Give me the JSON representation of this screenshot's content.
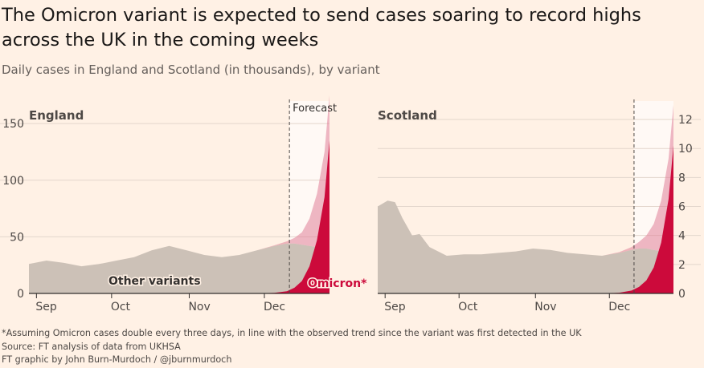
{
  "header": {
    "title_line1": "The Omicron variant is expected to send cases soaring to record highs",
    "title_line2": "across the UK in the coming weeks",
    "subtitle": "Daily cases in England and Scotland (in thousands), by variant"
  },
  "footer": {
    "note": "*Assuming Omicron cases double every three days, in line with the observed trend since the variant was first detected in the UK",
    "source": "Source: FT analysis of data from UKHSA",
    "credit": "FT graphic by John Burn-Murdoch / @jburnmurdoch"
  },
  "colors": {
    "background": "#fff1e5",
    "forecast_band": "#fff9f5",
    "other_variants": "#ccc1b7",
    "omicron": "#cc0a3b",
    "omicron_forecast": "#e07f98"
  },
  "chart_data": [
    {
      "type": "area",
      "panel_label": "England",
      "forecast_label": "Forecast",
      "x": [
        "2021-08-29",
        "2021-09-05",
        "2021-09-12",
        "2021-09-19",
        "2021-09-26",
        "2021-10-03",
        "2021-10-10",
        "2021-10-17",
        "2021-10-24",
        "2021-10-31",
        "2021-11-07",
        "2021-11-14",
        "2021-11-21",
        "2021-11-28",
        "2021-12-05",
        "2021-12-10",
        "2021-12-13",
        "2021-12-16",
        "2021-12-19",
        "2021-12-22",
        "2021-12-25",
        "2021-12-27"
      ],
      "series": [
        {
          "name": "Other variants",
          "values": [
            26,
            29,
            27,
            24,
            26,
            29,
            32,
            38,
            42,
            38,
            34,
            32,
            34,
            38,
            42,
            44,
            44,
            43,
            42,
            41,
            40,
            40
          ]
        },
        {
          "name": "Omicron*",
          "values": [
            0,
            0,
            0,
            0,
            0,
            0,
            0,
            0,
            0,
            0,
            0,
            0,
            0,
            0,
            0.5,
            2,
            5,
            11,
            24,
            47,
            85,
            135
          ]
        }
      ],
      "forecast_start": "2021-12-11",
      "xticks": [
        "Sep",
        "Oct",
        "Nov",
        "Dec"
      ],
      "xtick_dates": [
        "2021-09-01",
        "2021-10-01",
        "2021-11-01",
        "2021-12-01"
      ],
      "yticks": [
        0,
        50,
        100,
        150
      ],
      "ylim": [
        0,
        160
      ],
      "axis_side": "left",
      "stacked": true
    },
    {
      "type": "area",
      "panel_label": "Scotland",
      "x": [
        "2021-08-29",
        "2021-09-02",
        "2021-09-05",
        "2021-09-08",
        "2021-09-12",
        "2021-09-15",
        "2021-09-19",
        "2021-09-26",
        "2021-10-03",
        "2021-10-10",
        "2021-10-17",
        "2021-10-24",
        "2021-10-31",
        "2021-11-07",
        "2021-11-14",
        "2021-11-21",
        "2021-11-28",
        "2021-12-05",
        "2021-12-10",
        "2021-12-13",
        "2021-12-16",
        "2021-12-19",
        "2021-12-22",
        "2021-12-25",
        "2021-12-27"
      ],
      "series": [
        {
          "name": "Other variants",
          "values": [
            6.0,
            6.4,
            6.3,
            5.2,
            4.0,
            4.1,
            3.2,
            2.6,
            2.7,
            2.7,
            2.8,
            2.9,
            3.1,
            3.0,
            2.8,
            2.7,
            2.6,
            2.8,
            3.0,
            3.1,
            3.1,
            3.0,
            2.9,
            2.8,
            2.8
          ]
        },
        {
          "name": "Omicron*",
          "values": [
            0,
            0,
            0,
            0,
            0,
            0,
            0,
            0,
            0,
            0,
            0,
            0,
            0,
            0,
            0,
            0,
            0,
            0.05,
            0.2,
            0.45,
            0.9,
            1.8,
            3.5,
            6.5,
            10.2
          ]
        }
      ],
      "forecast_start": "2021-12-11",
      "xticks": [
        "Sep",
        "Oct",
        "Nov",
        "Dec"
      ],
      "xtick_dates": [
        "2021-09-01",
        "2021-10-01",
        "2021-11-01",
        "2021-12-01"
      ],
      "yticks": [
        0,
        2,
        4,
        6,
        8,
        10,
        12
      ],
      "ylim": [
        0,
        12.5
      ],
      "axis_side": "right",
      "stacked": true
    }
  ]
}
